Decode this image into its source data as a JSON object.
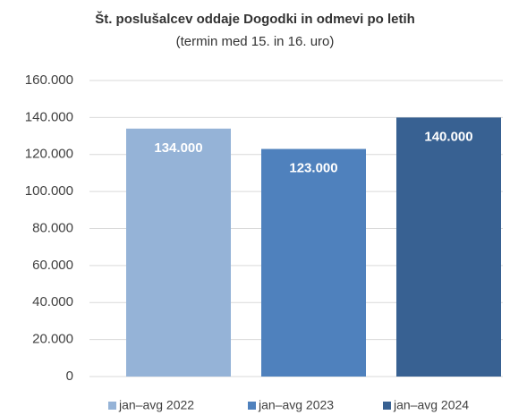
{
  "chart_data": {
    "type": "bar",
    "title": "Št. poslušalcev oddaje Dogodki in odmevi po letih",
    "subtitle": "(termin med 15. in 16. uro)",
    "categories": [
      "jan–avg 2022",
      "jan–avg 2023",
      "jan–avg 2024"
    ],
    "values": [
      134000,
      123000,
      140000
    ],
    "value_labels": [
      "134.000",
      "123.000",
      "140.000"
    ],
    "colors": [
      "#95b3d7",
      "#4f81bd",
      "#386192"
    ],
    "ylim": [
      0,
      160000
    ],
    "yticks": [
      0,
      {
        "value": 20000,
        "label": "20.000"
      },
      {
        "value": 40000,
        "label": "40.000"
      },
      {
        "value": 60000,
        "label": "60.000"
      },
      {
        "value": 80000,
        "label": "80.000"
      },
      {
        "value": 100000,
        "label": "100.000"
      },
      {
        "value": 120000,
        "label": "120.000"
      },
      {
        "value": 140000,
        "label": "140.000"
      },
      {
        "value": 160000,
        "label": "160.000"
      }
    ],
    "grid": true,
    "legend": "bottom"
  }
}
